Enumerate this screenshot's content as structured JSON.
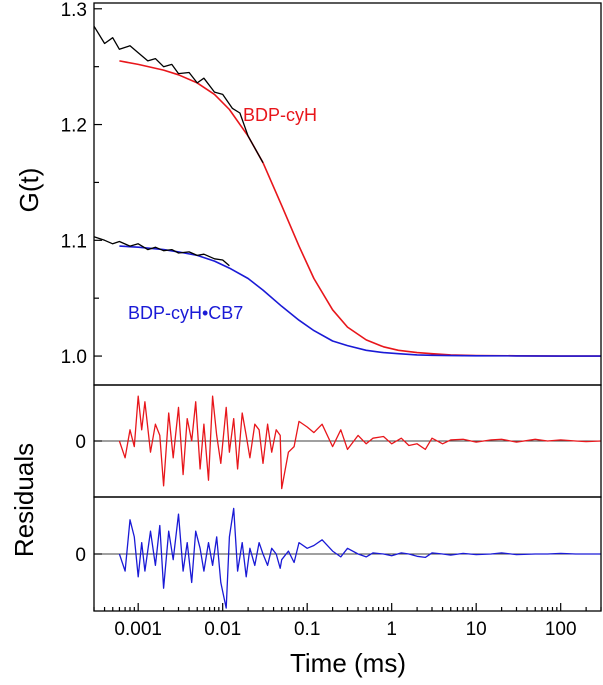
{
  "chart_data": [
    {
      "type": "line",
      "panel": "main",
      "ylabel": "G(t)",
      "xlabel": "Time (ms)",
      "x_scale": "log",
      "xlim": [
        0.0003,
        300
      ],
      "ylim": [
        0.975,
        1.305
      ],
      "y_ticks": [
        "1.0",
        "1.1",
        "1.2",
        "1.3"
      ],
      "x_ticks": [
        "0.001",
        "0.01",
        "0.1",
        "1",
        "10",
        "100"
      ],
      "series": [
        {
          "name": "BDP-cyH",
          "role": "fit",
          "color": "#e8161b",
          "x": [
            0.0006,
            0.001,
            0.002,
            0.003,
            0.005,
            0.008,
            0.012,
            0.02,
            0.03,
            0.05,
            0.08,
            0.12,
            0.2,
            0.3,
            0.5,
            0.8,
            1.2,
            2,
            3,
            5,
            10,
            30,
            100,
            300
          ],
          "y": [
            1.255,
            1.252,
            1.247,
            1.243,
            1.236,
            1.226,
            1.213,
            1.19,
            1.167,
            1.13,
            1.095,
            1.067,
            1.04,
            1.025,
            1.014,
            1.008,
            1.005,
            1.003,
            1.002,
            1.001,
            1.0005,
            1.0002,
            1.0,
            1.0
          ]
        },
        {
          "name": "BDP-cyH data",
          "role": "data",
          "color": "#000000",
          "x": [
            0.0003,
            0.0004,
            0.0005,
            0.0006,
            0.0008,
            0.001,
            0.0013,
            0.0016,
            0.002,
            0.0025,
            0.003,
            0.004,
            0.005,
            0.006,
            0.008,
            0.01,
            0.013,
            0.016,
            0.02,
            0.03
          ],
          "y": [
            1.285,
            1.27,
            1.275,
            1.265,
            1.268,
            1.262,
            1.255,
            1.257,
            1.25,
            1.252,
            1.244,
            1.245,
            1.236,
            1.24,
            1.228,
            1.226,
            1.214,
            1.21,
            1.19,
            1.167
          ]
        },
        {
          "name": "BDP-cyH•CB7",
          "role": "fit",
          "color": "#1a1ad6",
          "x": [
            0.0006,
            0.001,
            0.002,
            0.003,
            0.005,
            0.008,
            0.012,
            0.02,
            0.03,
            0.05,
            0.08,
            0.12,
            0.2,
            0.3,
            0.5,
            0.8,
            1.2,
            2,
            3,
            5,
            10,
            30,
            100,
            300
          ],
          "y": [
            1.095,
            1.094,
            1.092,
            1.09,
            1.087,
            1.082,
            1.076,
            1.067,
            1.057,
            1.043,
            1.031,
            1.022,
            1.013,
            1.009,
            1.005,
            1.003,
            1.002,
            1.001,
            1.0007,
            1.0004,
            1.0002,
            1.0001,
            1.0,
            1.0
          ]
        },
        {
          "name": "BDP-cyH•CB7 data",
          "role": "data",
          "color": "#000000",
          "x": [
            0.0003,
            0.0004,
            0.0005,
            0.0006,
            0.0008,
            0.001,
            0.0013,
            0.0016,
            0.002,
            0.0025,
            0.003,
            0.004,
            0.005,
            0.006,
            0.008,
            0.01,
            0.012
          ],
          "y": [
            1.103,
            1.1,
            1.097,
            1.099,
            1.095,
            1.097,
            1.092,
            1.094,
            1.091,
            1.092,
            1.089,
            1.09,
            1.087,
            1.088,
            1.084,
            1.083,
            1.078
          ]
        }
      ],
      "annotations": [
        {
          "text": "BDP-cyH",
          "color": "#e8161b"
        },
        {
          "text": "BDP-cyH•CB7",
          "color": "#1a1ad6"
        }
      ]
    },
    {
      "type": "line",
      "panel": "residuals-top",
      "shared_ylabel": "Residuals",
      "x_scale": "log",
      "xlim": [
        0.0003,
        300
      ],
      "ylim": [
        -1,
        1
      ],
      "y_ticks": [
        "0"
      ],
      "series": [
        {
          "name": "BDP-cyH residuals",
          "color": "#e8161b",
          "x": [
            0.0006,
            0.0007,
            0.0008,
            0.0009,
            0.001,
            0.0011,
            0.0012,
            0.0014,
            0.0016,
            0.0018,
            0.002,
            0.0023,
            0.0026,
            0.003,
            0.0034,
            0.0038,
            0.0043,
            0.0048,
            0.0054,
            0.006,
            0.0068,
            0.0076,
            0.0085,
            0.0095,
            0.011,
            0.012,
            0.0135,
            0.015,
            0.017,
            0.019,
            0.021,
            0.024,
            0.027,
            0.03,
            0.034,
            0.038,
            0.043,
            0.048,
            0.05,
            0.06,
            0.07,
            0.08,
            0.1,
            0.12,
            0.15,
            0.2,
            0.25,
            0.3,
            0.4,
            0.5,
            0.6,
            0.8,
            1,
            1.3,
            1.6,
            2,
            2.5,
            3,
            4,
            5,
            7,
            10,
            15,
            20,
            30,
            50,
            70,
            100,
            150,
            200,
            300
          ],
          "y": [
            0.0,
            -0.3,
            0.2,
            -0.1,
            0.8,
            0.2,
            0.7,
            -0.2,
            0.3,
            0.1,
            -0.8,
            0.5,
            -0.3,
            0.6,
            -0.6,
            0.4,
            0.0,
            0.7,
            -0.5,
            0.3,
            -0.7,
            0.8,
            0.1,
            -0.4,
            0.6,
            -0.2,
            0.4,
            -0.5,
            0.5,
            0.1,
            -0.3,
            0.3,
            0.2,
            -0.4,
            0.3,
            -0.2,
            0.2,
            0.1,
            -0.85,
            -0.2,
            -0.1,
            0.35,
            0.25,
            0.15,
            0.3,
            -0.1,
            0.2,
            -0.15,
            0.1,
            -0.05,
            0.05,
            0.08,
            -0.05,
            0.05,
            -0.08,
            -0.05,
            -0.15,
            0.05,
            -0.05,
            0.02,
            0.03,
            -0.02,
            0.02,
            0.03,
            -0.02,
            0.03,
            0.0,
            0.02,
            0.0,
            -0.01,
            0.0
          ]
        }
      ]
    },
    {
      "type": "line",
      "panel": "residuals-bottom",
      "x_scale": "log",
      "xlim": [
        0.0003,
        300
      ],
      "ylim": [
        -1,
        1
      ],
      "y_ticks": [
        "0"
      ],
      "series": [
        {
          "name": "BDP-cyH•CB7 residuals",
          "color": "#1a1ad6",
          "x": [
            0.0006,
            0.0007,
            0.0008,
            0.0009,
            0.001,
            0.0011,
            0.0012,
            0.0014,
            0.0016,
            0.0018,
            0.002,
            0.0023,
            0.0026,
            0.003,
            0.0034,
            0.0038,
            0.0043,
            0.0048,
            0.0054,
            0.006,
            0.0068,
            0.0076,
            0.0085,
            0.0095,
            0.011,
            0.012,
            0.0135,
            0.015,
            0.017,
            0.019,
            0.021,
            0.024,
            0.027,
            0.03,
            0.034,
            0.038,
            0.043,
            0.048,
            0.05,
            0.06,
            0.07,
            0.08,
            0.1,
            0.12,
            0.15,
            0.2,
            0.25,
            0.3,
            0.4,
            0.5,
            0.6,
            0.8,
            1,
            1.3,
            1.6,
            2,
            2.5,
            3,
            4,
            5,
            7,
            10,
            15,
            20,
            30,
            50,
            70,
            100,
            150,
            200,
            300
          ],
          "y": [
            0.0,
            -0.3,
            0.6,
            0.3,
            -0.4,
            0.2,
            -0.3,
            0.4,
            -0.2,
            0.5,
            -0.6,
            0.4,
            -0.1,
            0.7,
            -0.3,
            0.2,
            -0.5,
            0.4,
            0.1,
            -0.3,
            0.2,
            -0.2,
            0.3,
            -0.5,
            -0.95,
            0.3,
            0.8,
            -0.3,
            0.2,
            -0.4,
            0.1,
            -0.2,
            0.2,
            0.0,
            -0.2,
            0.1,
            0.0,
            -0.25,
            -0.1,
            0.05,
            -0.15,
            0.2,
            0.1,
            0.15,
            0.25,
            0.05,
            -0.05,
            0.1,
            0.0,
            -0.05,
            0.02,
            0.0,
            -0.03,
            0.02,
            0.0,
            -0.04,
            -0.06,
            0.02,
            0.0,
            -0.02,
            0.01,
            -0.01,
            0.0,
            0.02,
            -0.01,
            0.0,
            0.0,
            0.01,
            0.0,
            0.0,
            0.0
          ]
        }
      ]
    }
  ]
}
